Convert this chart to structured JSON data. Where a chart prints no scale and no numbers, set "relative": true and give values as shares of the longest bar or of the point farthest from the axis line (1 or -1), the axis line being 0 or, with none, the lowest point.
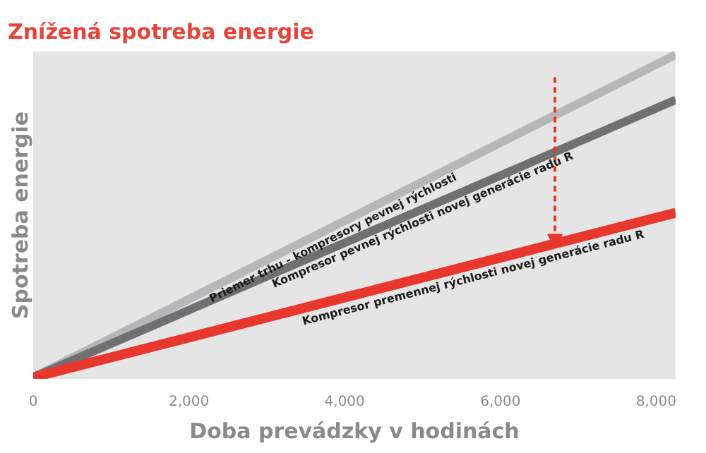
{
  "chart_data": {
    "type": "line",
    "title": "Znížená spotreba energie",
    "xlabel": "Doba prevádzky v hodinách",
    "ylabel": "Spotreba energie",
    "relative": true,
    "xlim": [
      0,
      8250
    ],
    "xticks": [
      {
        "value": 0,
        "label": "0"
      },
      {
        "value": 2000,
        "label": "2,000"
      },
      {
        "value": 4000,
        "label": "4,000"
      },
      {
        "value": 6000,
        "label": "6,000"
      },
      {
        "value": 8000,
        "label": "8,000"
      }
    ],
    "x": [
      0,
      8250
    ],
    "series": [
      {
        "name": "Priemer trhu - kompresory pevnej rýchlosti",
        "color": "#b7b7b9",
        "values": [
          0,
          1
        ]
      },
      {
        "name": "Kompresor pevnej rýchlosti novej generácie radu R",
        "color": "#707073",
        "values": [
          0,
          0.86
        ]
      },
      {
        "name": "Kompresor premennej rýchlosti novej generácie radu R",
        "color": "#e8382e",
        "values": [
          0,
          0.51
        ]
      },
      {
        "color": "#e8382e",
        "line_style": "dashed",
        "marker": "triangle",
        "x": [
          6700,
          6700
        ],
        "values": [
          0.93,
          0.43
        ]
      }
    ]
  }
}
